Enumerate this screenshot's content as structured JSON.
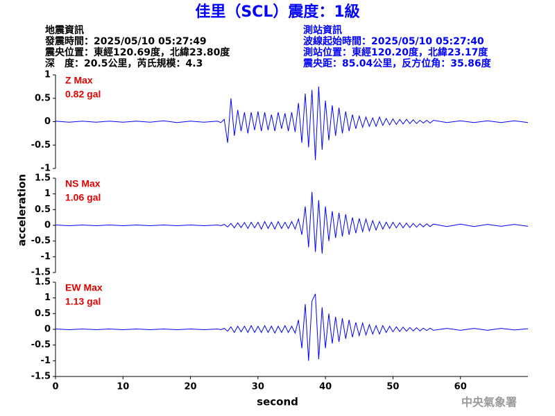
{
  "title": "佳里（SCL）震度：1級",
  "info_left": [
    "地震資訊",
    "發震時間：2025/05/10 05:27:49",
    "震央位置：東經120.69度，北緯23.80度",
    "深　度：20.5公里，芮氏規模：4.3"
  ],
  "info_right": [
    "測站資訊",
    "波線起始時間：2025/05/10 05:27:40",
    "測站位置：東經120.20度，北緯23.17度",
    "震央距：85.04公里，反方位角：35.86度"
  ],
  "ylabel": "acceleration",
  "xlabel": "second",
  "footer": "中央氣象署",
  "chart_data": [
    {
      "type": "line",
      "label": "Z Max",
      "max_label": "0.82 gal",
      "color": "#0000ff",
      "label_color": "#e00000",
      "xlim": [
        0,
        70
      ],
      "ylim": [
        -1,
        1
      ],
      "yticks": [
        -1,
        -0.5,
        0,
        0.5,
        1
      ],
      "x": [
        0,
        2,
        4,
        6,
        8,
        10,
        12,
        14,
        16,
        18,
        20,
        22,
        24,
        24.5,
        25,
        25.5,
        26,
        26.5,
        27,
        27.5,
        28,
        28.5,
        29,
        29.5,
        30,
        30.5,
        31,
        31.5,
        32,
        32.5,
        33,
        33.5,
        34,
        34.5,
        35,
        35.5,
        36,
        36.5,
        37,
        37.5,
        38,
        38.5,
        39,
        39.5,
        40,
        40.5,
        41,
        41.5,
        42,
        42.5,
        43,
        43.5,
        44,
        44.5,
        45,
        45.5,
        46,
        46.5,
        47,
        47.5,
        48,
        48.5,
        49,
        49.5,
        50,
        50.5,
        51,
        51.5,
        52,
        52.5,
        53,
        53.5,
        54,
        54.5,
        55,
        55.5,
        56,
        58,
        60,
        62,
        64,
        66,
        68,
        70
      ],
      "values": [
        0.01,
        -0.01,
        0.01,
        -0.01,
        0.01,
        -0.01,
        0.01,
        -0.01,
        0.02,
        -0.02,
        0.01,
        -0.01,
        0.01,
        -0.02,
        0.05,
        -0.45,
        0.5,
        -0.3,
        0.25,
        -0.2,
        0.2,
        -0.25,
        0.2,
        -0.18,
        0.22,
        -0.2,
        0.2,
        -0.18,
        0.15,
        -0.2,
        0.2,
        -0.15,
        0.18,
        -0.2,
        0.2,
        -0.22,
        0.4,
        -0.45,
        0.6,
        -0.55,
        0.68,
        -0.82,
        0.75,
        -0.6,
        0.45,
        -0.4,
        0.35,
        -0.3,
        0.3,
        -0.25,
        0.22,
        -0.2,
        0.15,
        -0.15,
        0.12,
        -0.12,
        0.1,
        -0.1,
        0.08,
        -0.1,
        0.1,
        -0.08,
        0.07,
        -0.07,
        0.06,
        -0.06,
        0.05,
        -0.05,
        0.05,
        -0.04,
        0.04,
        -0.04,
        0.03,
        -0.03,
        0.03,
        -0.03,
        0.03,
        -0.02,
        0.02,
        -0.02,
        0.02,
        -0.02,
        0.02,
        -0.02
      ]
    },
    {
      "type": "line",
      "label": "NS Max",
      "max_label": "1.06 gal",
      "color": "#0000ff",
      "label_color": "#e00000",
      "xlim": [
        0,
        70
      ],
      "ylim": [
        -1.5,
        1.5
      ],
      "yticks": [
        -1.5,
        -1,
        -0.5,
        0,
        0.5,
        1,
        1.5
      ],
      "x": [
        0,
        2,
        4,
        6,
        8,
        10,
        12,
        14,
        16,
        18,
        20,
        22,
        24,
        24.5,
        25,
        25.5,
        26,
        26.5,
        27,
        27.5,
        28,
        28.5,
        29,
        29.5,
        30,
        30.5,
        31,
        31.5,
        32,
        32.5,
        33,
        33.5,
        34,
        34.5,
        35,
        35.5,
        36,
        36.5,
        37,
        37.5,
        38,
        38.5,
        39,
        39.5,
        40,
        40.5,
        41,
        41.5,
        42,
        42.5,
        43,
        43.5,
        44,
        44.5,
        45,
        45.5,
        46,
        46.5,
        47,
        47.5,
        48,
        48.5,
        49,
        49.5,
        50,
        50.5,
        51,
        51.5,
        52,
        52.5,
        53,
        53.5,
        54,
        54.5,
        55,
        55.5,
        56,
        58,
        60,
        62,
        64,
        66,
        68,
        70
      ],
      "values": [
        0.01,
        -0.01,
        0.01,
        -0.01,
        0.01,
        -0.01,
        0.01,
        -0.01,
        0.01,
        -0.01,
        0.01,
        -0.01,
        0.01,
        -0.01,
        0.03,
        -0.05,
        0.06,
        -0.08,
        0.08,
        -0.07,
        0.09,
        -0.1,
        0.1,
        -0.08,
        0.1,
        -0.12,
        0.12,
        -0.1,
        0.1,
        -0.12,
        0.12,
        -0.1,
        0.1,
        -0.1,
        0.12,
        -0.12,
        0.2,
        -0.3,
        0.6,
        -0.7,
        1.06,
        -0.85,
        0.8,
        -0.9,
        0.6,
        -0.5,
        0.45,
        -0.4,
        0.4,
        -0.35,
        0.35,
        -0.3,
        0.25,
        -0.25,
        0.22,
        -0.2,
        0.2,
        -0.18,
        0.15,
        -0.15,
        0.12,
        -0.12,
        0.1,
        -0.1,
        0.1,
        -0.08,
        0.08,
        -0.08,
        0.07,
        -0.07,
        0.06,
        -0.06,
        0.05,
        -0.05,
        0.05,
        -0.04,
        0.04,
        -0.04,
        0.04,
        -0.04,
        0.03,
        -0.03,
        0.03,
        -0.03
      ]
    },
    {
      "type": "line",
      "label": "EW Max",
      "max_label": "1.13 gal",
      "color": "#0000ff",
      "label_color": "#e00000",
      "xlim": [
        0,
        70
      ],
      "ylim": [
        -1.5,
        1.5
      ],
      "yticks": [
        -1.5,
        -1,
        -0.5,
        0,
        0.5,
        1,
        1.5
      ],
      "xticks": [
        0,
        10,
        20,
        30,
        40,
        50,
        60
      ],
      "x": [
        0,
        2,
        4,
        6,
        8,
        10,
        12,
        14,
        16,
        18,
        20,
        22,
        24,
        24.5,
        25,
        25.5,
        26,
        26.5,
        27,
        27.5,
        28,
        28.5,
        29,
        29.5,
        30,
        30.5,
        31,
        31.5,
        32,
        32.5,
        33,
        33.5,
        34,
        34.5,
        35,
        35.5,
        36,
        36.5,
        37,
        37.5,
        38,
        38.5,
        39,
        39.5,
        40,
        40.5,
        41,
        41.5,
        42,
        42.5,
        43,
        43.5,
        44,
        44.5,
        45,
        45.5,
        46,
        46.5,
        47,
        47.5,
        48,
        48.5,
        49,
        49.5,
        50,
        50.5,
        51,
        51.5,
        52,
        52.5,
        53,
        53.5,
        54,
        54.5,
        55,
        55.5,
        56,
        58,
        60,
        62,
        64,
        66,
        68,
        70
      ],
      "values": [
        0.01,
        -0.01,
        0.01,
        -0.01,
        0.01,
        -0.01,
        0.01,
        -0.01,
        0.01,
        -0.01,
        0.01,
        -0.01,
        0.01,
        -0.01,
        0.03,
        -0.06,
        0.08,
        -0.1,
        0.1,
        -0.08,
        0.1,
        -0.1,
        0.12,
        -0.1,
        0.1,
        -0.1,
        0.12,
        -0.1,
        0.1,
        -0.12,
        0.1,
        -0.1,
        0.12,
        -0.1,
        0.1,
        -0.12,
        0.3,
        -0.6,
        0.8,
        -1,
        0.9,
        1.13,
        -0.95,
        0.7,
        -0.6,
        0.5,
        -0.45,
        0.4,
        -0.4,
        0.35,
        -0.3,
        0.3,
        -0.25,
        0.22,
        -0.2,
        0.2,
        -0.18,
        0.15,
        -0.15,
        0.12,
        -0.15,
        0.12,
        -0.1,
        0.1,
        -0.08,
        0.08,
        -0.07,
        0.07,
        -0.06,
        0.06,
        -0.05,
        0.05,
        -0.05,
        0.04,
        -0.04,
        0.04,
        -0.03,
        0.03,
        -0.03,
        0.03,
        -0.03,
        0.03,
        -0.02,
        0.02
      ]
    }
  ]
}
